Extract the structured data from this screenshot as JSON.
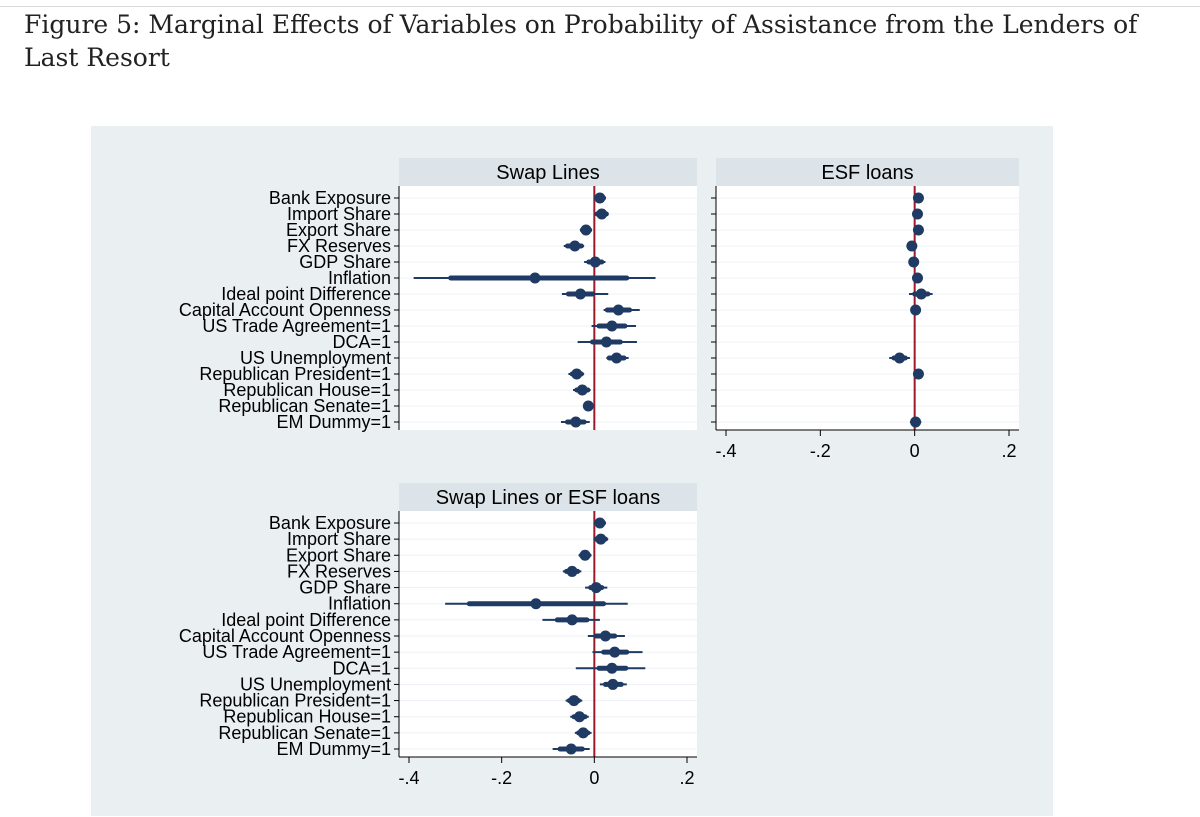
{
  "caption": "Figure 5: Marginal Effects of Variables on Probability of Assistance from the Lenders of Last Resort",
  "colors": {
    "background": "#eaeff2",
    "plot_region": "#ffffff",
    "title_band": "#dce4ea",
    "marker": "#1f3a63",
    "zero_line": "#9e1a2a",
    "grid": "#edf1f4"
  },
  "chart_data": [
    {
      "type": "coefficient-plot",
      "title": "Swap Lines",
      "variables": [
        "Bank Exposure",
        "Import Share",
        "Export Share",
        "FX Reserves",
        "GDP Share",
        "Inflation",
        "Ideal point Difference",
        "Capital Account Openness",
        "US Trade Agreement=1",
        "DCA=1",
        "US Unemployment",
        "Republican President=1",
        "Republican House=1",
        "Republican Senate=1",
        "EM Dummy=1"
      ],
      "estimates": [
        0.012,
        0.016,
        -0.018,
        -0.042,
        0.002,
        -0.128,
        -0.03,
        0.052,
        0.038,
        0.026,
        0.048,
        -0.038,
        -0.026,
        -0.013,
        -0.04
      ],
      "ci90_low": [
        0.004,
        0.006,
        -0.026,
        -0.058,
        -0.012,
        -0.31,
        -0.056,
        0.028,
        0.01,
        -0.004,
        0.032,
        -0.048,
        -0.038,
        -0.018,
        -0.058
      ],
      "ci90_high": [
        0.02,
        0.026,
        -0.01,
        -0.028,
        0.016,
        0.07,
        -0.004,
        0.076,
        0.066,
        0.056,
        0.064,
        -0.028,
        -0.014,
        -0.008,
        -0.022
      ],
      "ci95_low": [
        0.002,
        0.0,
        -0.03,
        -0.066,
        -0.022,
        -0.39,
        -0.07,
        0.02,
        -0.006,
        -0.036,
        0.026,
        -0.056,
        -0.046,
        -0.022,
        -0.072
      ],
      "ci95_high": [
        0.022,
        0.03,
        -0.006,
        -0.022,
        0.024,
        0.132,
        0.03,
        0.098,
        0.09,
        0.092,
        0.074,
        -0.022,
        -0.008,
        -0.004,
        -0.01
      ],
      "xlim": [
        -0.4,
        0.2
      ],
      "grid": true
    },
    {
      "type": "coefficient-plot",
      "title": "ESF loans",
      "variables": [
        "Bank Exposure",
        "Import Share",
        "Export Share",
        "FX Reserves",
        "GDP Share",
        "Inflation",
        "Ideal point Difference",
        "Capital Account Openness",
        "US Trade Agreement=1",
        "DCA=1",
        "US Unemployment",
        "Republican President=1",
        "Republican House=1",
        "Republican Senate=1",
        "EM Dummy=1"
      ],
      "estimates": [
        0.008,
        0.006,
        0.008,
        -0.006,
        -0.002,
        0.006,
        0.014,
        0.002,
        null,
        null,
        -0.032,
        0.008,
        null,
        null,
        0.002
      ],
      "ci90_low": [
        0.006,
        0.004,
        0.006,
        -0.012,
        -0.006,
        0.0,
        0.0,
        0.0,
        null,
        null,
        -0.044,
        0.004,
        null,
        null,
        -0.002
      ],
      "ci90_high": [
        0.01,
        0.008,
        0.01,
        0.0,
        0.002,
        0.012,
        0.028,
        0.004,
        null,
        null,
        -0.02,
        0.012,
        null,
        null,
        0.006
      ],
      "ci95_low": [
        0.004,
        0.002,
        0.004,
        -0.016,
        -0.008,
        -0.004,
        -0.012,
        -0.002,
        null,
        null,
        -0.054,
        0.0,
        null,
        null,
        -0.01
      ],
      "ci95_high": [
        0.012,
        0.01,
        0.012,
        0.004,
        0.004,
        0.016,
        0.038,
        0.006,
        null,
        null,
        -0.01,
        0.016,
        null,
        null,
        0.014
      ],
      "xlim": [
        -0.4,
        0.2
      ],
      "x_ticks": [
        "-.4",
        "-.2",
        "0",
        ".2"
      ],
      "grid": true
    },
    {
      "type": "coefficient-plot",
      "title": "Swap Lines or ESF loans",
      "variables": [
        "Bank Exposure",
        "Import Share",
        "Export Share",
        "FX Reserves",
        "GDP Share",
        "Inflation",
        "Ideal point Difference",
        "Capital Account Openness",
        "US Trade Agreement=1",
        "DCA=1",
        "US Unemployment",
        "Republican President=1",
        "Republican House=1",
        "Republican Senate=1",
        "EM Dummy=1"
      ],
      "estimates": [
        0.012,
        0.014,
        -0.02,
        -0.048,
        0.004,
        -0.126,
        -0.048,
        0.024,
        0.044,
        0.038,
        0.04,
        -0.044,
        -0.032,
        -0.024,
        -0.05
      ],
      "ci90_low": [
        0.004,
        0.004,
        -0.028,
        -0.06,
        -0.008,
        -0.27,
        -0.08,
        0.004,
        0.02,
        0.01,
        0.024,
        -0.054,
        -0.044,
        -0.034,
        -0.074
      ],
      "ci90_high": [
        0.02,
        0.024,
        -0.012,
        -0.036,
        0.016,
        0.02,
        -0.016,
        0.044,
        0.07,
        0.068,
        0.058,
        -0.034,
        -0.02,
        -0.014,
        -0.026
      ],
      "ci95_low": [
        0.0,
        -0.002,
        -0.034,
        -0.068,
        -0.02,
        -0.322,
        -0.112,
        -0.014,
        -0.004,
        -0.04,
        0.012,
        -0.062,
        -0.052,
        -0.042,
        -0.09
      ],
      "ci95_high": [
        0.024,
        0.03,
        -0.006,
        -0.028,
        0.028,
        0.072,
        0.012,
        0.066,
        0.104,
        0.11,
        0.07,
        -0.026,
        -0.012,
        -0.006,
        -0.01
      ],
      "xlim": [
        -0.4,
        0.2
      ],
      "x_ticks": [
        "-.4",
        "-.2",
        "0",
        ".2"
      ],
      "grid": true
    }
  ]
}
